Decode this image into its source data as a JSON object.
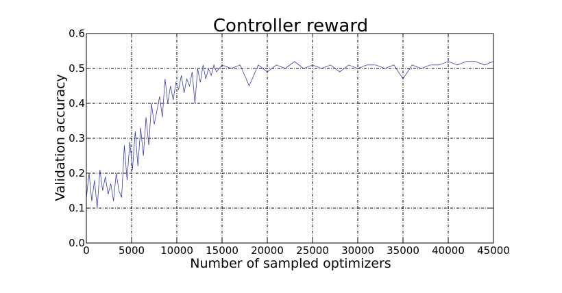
{
  "chart_data": {
    "type": "line",
    "title": "Controller reward",
    "xlabel": "Number of sampled optimizers",
    "ylabel": "Validation accuracy",
    "xlim": [
      0,
      45000
    ],
    "ylim": [
      0.0,
      0.6
    ],
    "x_ticks": [
      0,
      5000,
      10000,
      15000,
      20000,
      25000,
      30000,
      35000,
      40000,
      45000
    ],
    "x_tick_labels": [
      "0",
      "5000",
      "10000",
      "15000",
      "20000",
      "25000",
      "30000",
      "35000",
      "40000",
      "45000"
    ],
    "y_ticks": [
      0.0,
      0.1,
      0.2,
      0.3,
      0.4,
      0.5,
      0.6
    ],
    "y_tick_labels": [
      "0.0",
      "0.1",
      "0.2",
      "0.3",
      "0.4",
      "0.5",
      "0.6"
    ],
    "grid": true,
    "legend": "none",
    "series": [
      {
        "color": "#3a3aa8",
        "x": [
          0,
          300,
          600,
          900,
          1200,
          1500,
          1800,
          2100,
          2400,
          2700,
          3000,
          3300,
          3600,
          3900,
          4200,
          4500,
          4800,
          5100,
          5400,
          5700,
          6000,
          6300,
          6600,
          6900,
          7200,
          7500,
          7800,
          8100,
          8400,
          8700,
          9000,
          9300,
          9600,
          9900,
          10200,
          10500,
          10800,
          11100,
          11400,
          11700,
          12000,
          12300,
          12600,
          12900,
          13200,
          13500,
          13800,
          14100,
          14400,
          14700,
          15000,
          16000,
          17000,
          18000,
          19000,
          20000,
          21000,
          22000,
          23000,
          24000,
          25000,
          26000,
          27000,
          28000,
          29000,
          30000,
          31000,
          32000,
          33000,
          34000,
          35000,
          36000,
          37000,
          38000,
          39000,
          40000,
          41000,
          42000,
          43000,
          44000,
          45000
        ],
        "y": [
          0.13,
          0.2,
          0.12,
          0.18,
          0.1,
          0.21,
          0.15,
          0.19,
          0.14,
          0.17,
          0.12,
          0.2,
          0.15,
          0.13,
          0.28,
          0.18,
          0.29,
          0.21,
          0.32,
          0.22,
          0.33,
          0.25,
          0.36,
          0.28,
          0.4,
          0.34,
          0.38,
          0.42,
          0.36,
          0.47,
          0.4,
          0.45,
          0.41,
          0.46,
          0.44,
          0.48,
          0.43,
          0.47,
          0.45,
          0.49,
          0.4,
          0.5,
          0.46,
          0.51,
          0.47,
          0.5,
          0.48,
          0.51,
          0.49,
          0.5,
          0.51,
          0.5,
          0.51,
          0.45,
          0.51,
          0.49,
          0.51,
          0.5,
          0.52,
          0.5,
          0.51,
          0.5,
          0.51,
          0.49,
          0.51,
          0.5,
          0.51,
          0.51,
          0.5,
          0.51,
          0.47,
          0.51,
          0.5,
          0.51,
          0.51,
          0.52,
          0.51,
          0.52,
          0.52,
          0.51,
          0.52
        ]
      }
    ]
  }
}
